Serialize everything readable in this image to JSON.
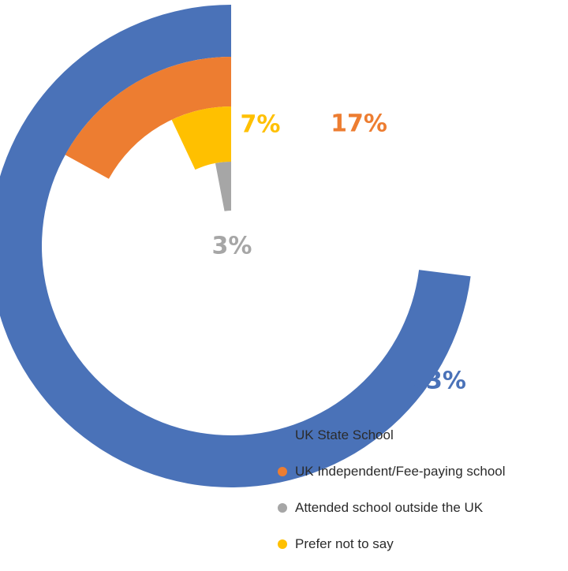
{
  "chart_data": {
    "type": "radial-bar",
    "title": "",
    "series": [
      {
        "name": "UK State School",
        "value": 73,
        "label": "73%",
        "color": "#4A72B8"
      },
      {
        "name": "UK Independent/Fee-paying school",
        "value": 17,
        "label": "17%",
        "color": "#ED7D31"
      },
      {
        "name": "Attended school outside the UK",
        "value": 3,
        "label": "3%",
        "color": "#A6A6A6"
      },
      {
        "name": "Prefer not to say",
        "value": 7,
        "label": "7%",
        "color": "#FFC000"
      }
    ],
    "legend": {
      "position": "bottom-right"
    }
  }
}
